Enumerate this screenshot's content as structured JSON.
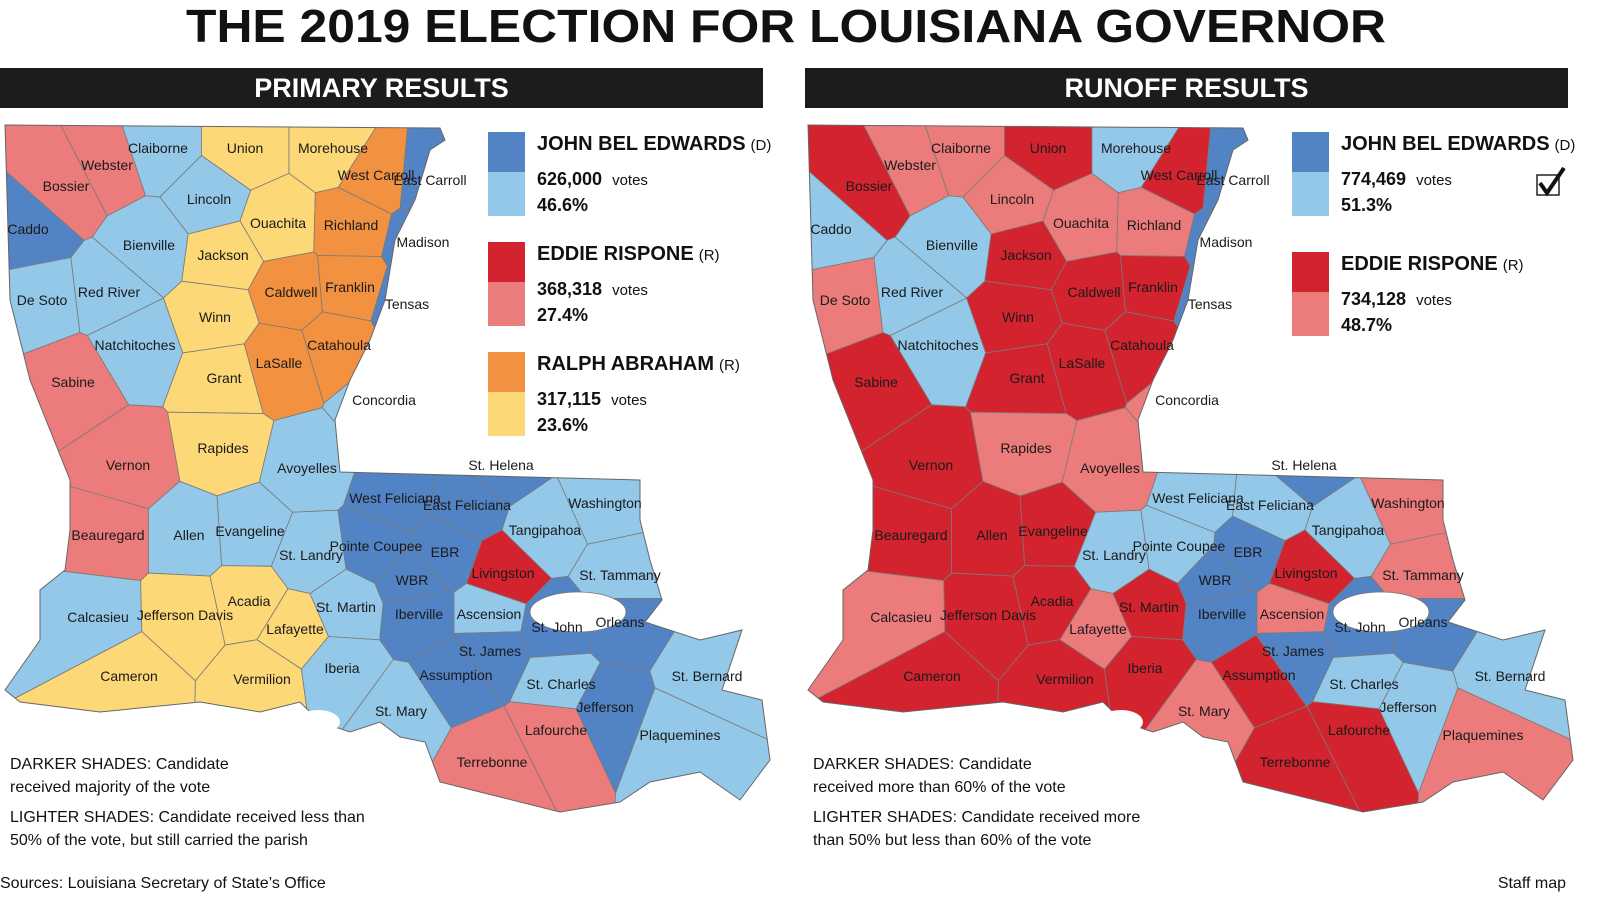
{
  "title": "THE 2019 ELECTION FOR LOUISIANA GOVERNOR",
  "parishes": [
    "Caddo",
    "Bossier",
    "Webster",
    "Claiborne",
    "Union",
    "Morehouse",
    "West Carroll",
    "East Carroll",
    "Lincoln",
    "Bienville",
    "Ouachita",
    "Richland",
    "Madison",
    "Jackson",
    "Caldwell",
    "Franklin",
    "Tensas",
    "De Soto",
    "Red River",
    "Winn",
    "Natchitoches",
    "Sabine",
    "Grant",
    "LaSalle",
    "Catahoula",
    "Concordia",
    "Vernon",
    "Rapides",
    "Avoyelles",
    "Beauregard",
    "Allen",
    "Evangeline",
    "St. Landry",
    "West Feliciana",
    "East Feliciana",
    "St. Helena",
    "Washington",
    "Tangipahoa",
    "Pointe Coupee",
    "EBR",
    "WBR",
    "Livingston",
    "St. Tammany",
    "Calcasieu",
    "Jefferson Davis",
    "Acadia",
    "Lafayette",
    "St. Martin",
    "Iberville",
    "Ascension",
    "St. John",
    "Orleans",
    "St. James",
    "Cameron",
    "Vermilion",
    "Iberia",
    "Assumption",
    "St. Charles",
    "St. Bernard",
    "Jefferson",
    "St. Mary",
    "Lafourche",
    "Plaquemines",
    "Terrebonne"
  ],
  "panels": [
    {
      "header": "PRIMARY RESULTS",
      "candidates": [
        {
          "name": "JOHN BEL EDWARDS",
          "party": "(D)",
          "votes": "626,000",
          "votes_unit": "votes",
          "pct": "46.6%",
          "dark": "#5283c4",
          "light": "#93c8e8"
        },
        {
          "name": "EDDIE RISPONE",
          "party": "(R)",
          "votes": "368,318",
          "votes_unit": "votes",
          "pct": "27.4%",
          "dark": "#d3232e",
          "light": "#ec7c7b"
        },
        {
          "name": "RALPH ABRAHAM",
          "party": "(R)",
          "votes": "317,115",
          "votes_unit": "votes",
          "pct": "23.6%",
          "dark": "#f2913f",
          "light": "#fdd877"
        }
      ],
      "results": [
        [
          0,
          "dark"
        ],
        [
          1,
          "light"
        ],
        [
          1,
          "light"
        ],
        [
          0,
          "light"
        ],
        [
          2,
          "light"
        ],
        [
          2,
          "light"
        ],
        [
          2,
          "dark"
        ],
        [
          0,
          "dark"
        ],
        [
          0,
          "light"
        ],
        [
          0,
          "light"
        ],
        [
          2,
          "light"
        ],
        [
          2,
          "dark"
        ],
        [
          0,
          "dark"
        ],
        [
          2,
          "light"
        ],
        [
          2,
          "dark"
        ],
        [
          2,
          "dark"
        ],
        [
          0,
          "dark"
        ],
        [
          0,
          "light"
        ],
        [
          0,
          "light"
        ],
        [
          2,
          "light"
        ],
        [
          0,
          "light"
        ],
        [
          1,
          "light"
        ],
        [
          2,
          "light"
        ],
        [
          2,
          "dark"
        ],
        [
          2,
          "dark"
        ],
        [
          0,
          "light"
        ],
        [
          1,
          "light"
        ],
        [
          2,
          "light"
        ],
        [
          0,
          "light"
        ],
        [
          1,
          "light"
        ],
        [
          0,
          "light"
        ],
        [
          0,
          "light"
        ],
        [
          0,
          "light"
        ],
        [
          0,
          "dark"
        ],
        [
          0,
          "dark"
        ],
        [
          0,
          "dark"
        ],
        [
          0,
          "light"
        ],
        [
          0,
          "light"
        ],
        [
          0,
          "dark"
        ],
        [
          0,
          "dark"
        ],
        [
          0,
          "dark"
        ],
        [
          1,
          "dark"
        ],
        [
          0,
          "light"
        ],
        [
          0,
          "light"
        ],
        [
          2,
          "light"
        ],
        [
          2,
          "light"
        ],
        [
          2,
          "light"
        ],
        [
          0,
          "light"
        ],
        [
          0,
          "dark"
        ],
        [
          0,
          "light"
        ],
        [
          0,
          "dark"
        ],
        [
          0,
          "dark"
        ],
        [
          0,
          "dark"
        ],
        [
          2,
          "light"
        ],
        [
          2,
          "light"
        ],
        [
          0,
          "light"
        ],
        [
          0,
          "dark"
        ],
        [
          0,
          "light"
        ],
        [
          0,
          "light"
        ],
        [
          0,
          "dark"
        ],
        [
          0,
          "light"
        ],
        [
          1,
          "light"
        ],
        [
          0,
          "light"
        ],
        [
          1,
          "light"
        ]
      ],
      "notes": [
        [
          "DARKER SHADES: Candidate",
          "received majority of the vote"
        ],
        [
          "LIGHTER SHADES: Candidate received less than",
          "50% of the vote, but still carried the parish"
        ]
      ]
    },
    {
      "header": "RUNOFF RESULTS",
      "candidates": [
        {
          "name": "JOHN BEL EDWARDS",
          "party": "(D)",
          "votes": "774,469",
          "votes_unit": "votes",
          "pct": "51.3%",
          "dark": "#5283c4",
          "light": "#93c8e8"
        },
        {
          "name": "EDDIE RISPONE",
          "party": "(R)",
          "votes": "734,128",
          "votes_unit": "votes",
          "pct": "48.7%",
          "dark": "#d3232e",
          "light": "#ec7c7b"
        }
      ],
      "results": [
        [
          0,
          "light"
        ],
        [
          1,
          "dark"
        ],
        [
          1,
          "light"
        ],
        [
          1,
          "light"
        ],
        [
          1,
          "dark"
        ],
        [
          0,
          "light"
        ],
        [
          1,
          "dark"
        ],
        [
          0,
          "dark"
        ],
        [
          1,
          "light"
        ],
        [
          0,
          "light"
        ],
        [
          1,
          "light"
        ],
        [
          1,
          "light"
        ],
        [
          0,
          "dark"
        ],
        [
          1,
          "dark"
        ],
        [
          1,
          "dark"
        ],
        [
          1,
          "dark"
        ],
        [
          0,
          "dark"
        ],
        [
          1,
          "light"
        ],
        [
          0,
          "light"
        ],
        [
          1,
          "dark"
        ],
        [
          0,
          "light"
        ],
        [
          1,
          "dark"
        ],
        [
          1,
          "dark"
        ],
        [
          1,
          "dark"
        ],
        [
          1,
          "dark"
        ],
        [
          1,
          "light"
        ],
        [
          1,
          "dark"
        ],
        [
          1,
          "light"
        ],
        [
          1,
          "light"
        ],
        [
          1,
          "dark"
        ],
        [
          1,
          "dark"
        ],
        [
          1,
          "dark"
        ],
        [
          0,
          "light"
        ],
        [
          0,
          "light"
        ],
        [
          0,
          "light"
        ],
        [
          0,
          "dark"
        ],
        [
          1,
          "light"
        ],
        [
          0,
          "light"
        ],
        [
          0,
          "light"
        ],
        [
          0,
          "dark"
        ],
        [
          0,
          "dark"
        ],
        [
          1,
          "dark"
        ],
        [
          1,
          "light"
        ],
        [
          1,
          "light"
        ],
        [
          1,
          "dark"
        ],
        [
          1,
          "dark"
        ],
        [
          1,
          "light"
        ],
        [
          1,
          "dark"
        ],
        [
          0,
          "dark"
        ],
        [
          1,
          "light"
        ],
        [
          0,
          "dark"
        ],
        [
          0,
          "dark"
        ],
        [
          0,
          "dark"
        ],
        [
          1,
          "dark"
        ],
        [
          1,
          "dark"
        ],
        [
          1,
          "dark"
        ],
        [
          1,
          "dark"
        ],
        [
          0,
          "light"
        ],
        [
          0,
          "light"
        ],
        [
          0,
          "light"
        ],
        [
          1,
          "light"
        ],
        [
          1,
          "dark"
        ],
        [
          1,
          "light"
        ],
        [
          1,
          "dark"
        ]
      ],
      "notes": [
        [
          "DARKER SHADES: Candidate",
          "received more than 60% of the vote"
        ],
        [
          "LIGHTER SHADES: Candidate received more",
          "than 50% but less than 60% of the vote"
        ]
      ]
    }
  ],
  "source": "Sources:  Louisiana Secretary of State’s Office",
  "credit": "Staff map"
}
